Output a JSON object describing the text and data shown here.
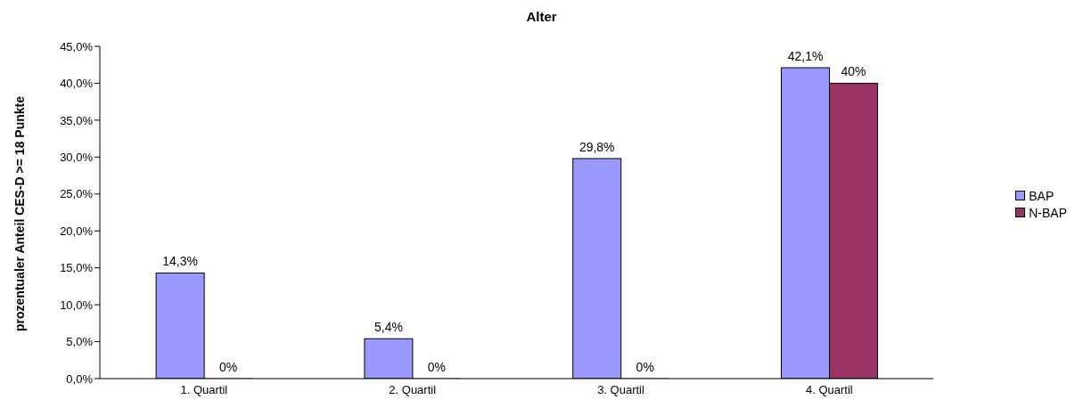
{
  "chart_data": {
    "type": "bar",
    "title": "Alter",
    "ylabel": "prozentualer Anteil CES-D >= 18 Punkte",
    "categories": [
      "1. Quartil",
      "2. Quartil",
      "3. Quartil",
      "4. Quartil"
    ],
    "series": [
      {
        "name": "BAP",
        "color": "#9999ff",
        "values": [
          14.3,
          5.4,
          29.8,
          42.1
        ],
        "value_labels": [
          "14,3%",
          "5,4%",
          "29,8%",
          "42,1%"
        ]
      },
      {
        "name": "N-BAP",
        "color": "#993366",
        "values": [
          0,
          0,
          0,
          40
        ],
        "value_labels": [
          "0%",
          "0%",
          "0%",
          "40%"
        ]
      }
    ],
    "ylim": [
      0,
      45
    ],
    "yticks": [
      {
        "value": 0,
        "label": "0,0%"
      },
      {
        "value": 5,
        "label": "5,0%"
      },
      {
        "value": 10,
        "label": "10,0%"
      },
      {
        "value": 15,
        "label": "15,0%"
      },
      {
        "value": 20,
        "label": "20,0%"
      },
      {
        "value": 25,
        "label": "25,0%"
      },
      {
        "value": 30,
        "label": "30,0%"
      },
      {
        "value": 35,
        "label": "35,0%"
      },
      {
        "value": 40,
        "label": "40,0%"
      },
      {
        "value": 45,
        "label": "45,0%"
      }
    ],
    "grid": false,
    "legend": "right"
  }
}
